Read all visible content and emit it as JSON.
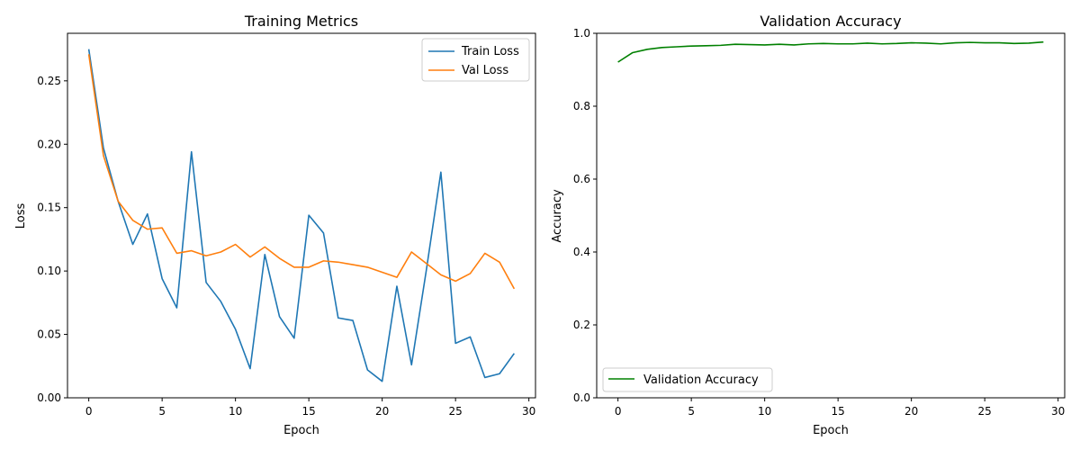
{
  "figure": {
    "background": "#ffffff"
  },
  "chart_data": [
    {
      "type": "line",
      "title": "Training Metrics",
      "xlabel": "Epoch",
      "ylabel": "Loss",
      "xlim": [
        -1.45,
        30.45
      ],
      "ylim": [
        0.0,
        0.2875
      ],
      "xticks": [
        0,
        5,
        10,
        15,
        20,
        25,
        30
      ],
      "xtick_labels": [
        "0",
        "5",
        "10",
        "15",
        "20",
        "25",
        "30"
      ],
      "yticks": [
        0.0,
        0.05,
        0.1,
        0.15,
        0.2,
        0.25
      ],
      "ytick_labels": [
        "0.00",
        "0.05",
        "0.10",
        "0.15",
        "0.20",
        "0.25"
      ],
      "grid": false,
      "legend_position": "top-right",
      "x": [
        0,
        1,
        2,
        3,
        4,
        5,
        6,
        7,
        8,
        9,
        10,
        11,
        12,
        13,
        14,
        15,
        16,
        17,
        18,
        19,
        20,
        21,
        22,
        23,
        24,
        25,
        26,
        27,
        28,
        29
      ],
      "series": [
        {
          "name": "Train Loss",
          "color": "#1f77b4",
          "values": [
            0.275,
            0.197,
            0.155,
            0.121,
            0.145,
            0.094,
            0.071,
            0.194,
            0.091,
            0.076,
            0.054,
            0.023,
            0.113,
            0.064,
            0.047,
            0.144,
            0.13,
            0.063,
            0.061,
            0.022,
            0.013,
            0.088,
            0.026,
            0.1,
            0.178,
            0.043,
            0.048,
            0.016,
            0.019,
            0.035
          ]
        },
        {
          "name": "Val Loss",
          "color": "#ff7f0e",
          "values": [
            0.271,
            0.191,
            0.155,
            0.14,
            0.133,
            0.134,
            0.114,
            0.116,
            0.112,
            0.115,
            0.121,
            0.111,
            0.119,
            0.11,
            0.103,
            0.103,
            0.108,
            0.107,
            0.105,
            0.103,
            0.099,
            0.095,
            0.115,
            0.106,
            0.097,
            0.092,
            0.098,
            0.114,
            0.107,
            0.086
          ]
        }
      ]
    },
    {
      "type": "line",
      "title": "Validation Accuracy",
      "xlabel": "Epoch",
      "ylabel": "Accuracy",
      "xlim": [
        -1.45,
        30.45
      ],
      "ylim": [
        0.0,
        1.0
      ],
      "xticks": [
        0,
        5,
        10,
        15,
        20,
        25,
        30
      ],
      "xtick_labels": [
        "0",
        "5",
        "10",
        "15",
        "20",
        "25",
        "30"
      ],
      "yticks": [
        0.0,
        0.2,
        0.4,
        0.6,
        0.8,
        1.0
      ],
      "ytick_labels": [
        "0.0",
        "0.2",
        "0.4",
        "0.6",
        "0.8",
        "1.0"
      ],
      "grid": false,
      "legend_position": "bottom-left",
      "x": [
        0,
        1,
        2,
        3,
        4,
        5,
        6,
        7,
        8,
        9,
        10,
        11,
        12,
        13,
        14,
        15,
        16,
        17,
        18,
        19,
        20,
        21,
        22,
        23,
        24,
        25,
        26,
        27,
        28,
        29
      ],
      "series": [
        {
          "name": "Validation Accuracy",
          "color": "#008000",
          "values": [
            0.921,
            0.947,
            0.956,
            0.961,
            0.963,
            0.965,
            0.966,
            0.967,
            0.97,
            0.969,
            0.968,
            0.97,
            0.968,
            0.971,
            0.972,
            0.971,
            0.971,
            0.973,
            0.971,
            0.972,
            0.974,
            0.973,
            0.971,
            0.974,
            0.975,
            0.974,
            0.974,
            0.972,
            0.973,
            0.976
          ]
        }
      ]
    }
  ]
}
